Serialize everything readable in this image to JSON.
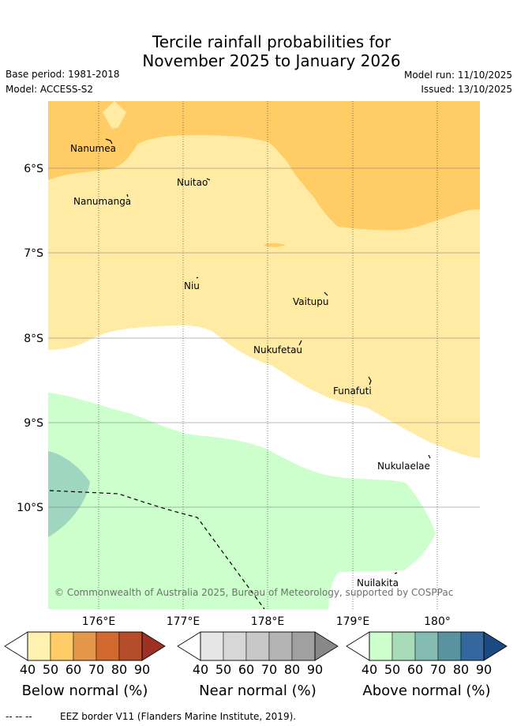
{
  "header": {
    "title_line1": "Tercile rainfall probabilities for",
    "title_line2": "November 2025 to January 2026",
    "base_period": "Base period: 1981-2018",
    "model": "Model: ACCESS-S2",
    "model_run": "Model run: 11/10/2025",
    "issued": "Issued: 13/10/2025"
  },
  "map": {
    "lat_labels": [
      "6°S",
      "7°S",
      "8°S",
      "9°S",
      "10°S"
    ],
    "lon_labels": [
      "176°E",
      "177°E",
      "178°E",
      "179°E",
      "180°"
    ],
    "islands": [
      "Nanumea",
      "Nuitao",
      "Nanumanga",
      "Niu",
      "Vaitupu",
      "Nukufetau",
      "Funafuti",
      "Nukulaelae",
      "Nuilakita"
    ],
    "copyright": "© Commonwealth of Australia 2025, Bureau of Meteorology, supported by COSPPac"
  },
  "colorbars": [
    {
      "title": "Below normal (%)",
      "ticks": [
        "40",
        "50",
        "60",
        "70",
        "80",
        "90"
      ],
      "colors": [
        "#fff1b0",
        "#ffcc66",
        "#e6984a",
        "#d2692f",
        "#b54c2a",
        "#9e3123"
      ]
    },
    {
      "title": "Near normal (%)",
      "ticks": [
        "40",
        "50",
        "60",
        "70",
        "80",
        "90"
      ],
      "colors": [
        "#e6e6e6",
        "#d7d7d7",
        "#c8c8c8",
        "#b4b4b4",
        "#a0a0a0",
        "#888888"
      ]
    },
    {
      "title": "Above normal (%)",
      "ticks": [
        "40",
        "50",
        "60",
        "70",
        "80",
        "90"
      ],
      "colors": [
        "#ccffcc",
        "#a8dcb9",
        "#84bcb4",
        "#5a93a0",
        "#33679e",
        "#1b4a82"
      ]
    }
  ],
  "colors": {
    "below_40": "#ffeba3",
    "below_50": "#ffcc66",
    "above_40": "#ccffcc",
    "above_50": "#9fd6c0"
  },
  "footer": {
    "legend_symbol": "--  --  --",
    "legend_text": "EEZ border V11 (Flanders Marine Institute, 2019)."
  }
}
